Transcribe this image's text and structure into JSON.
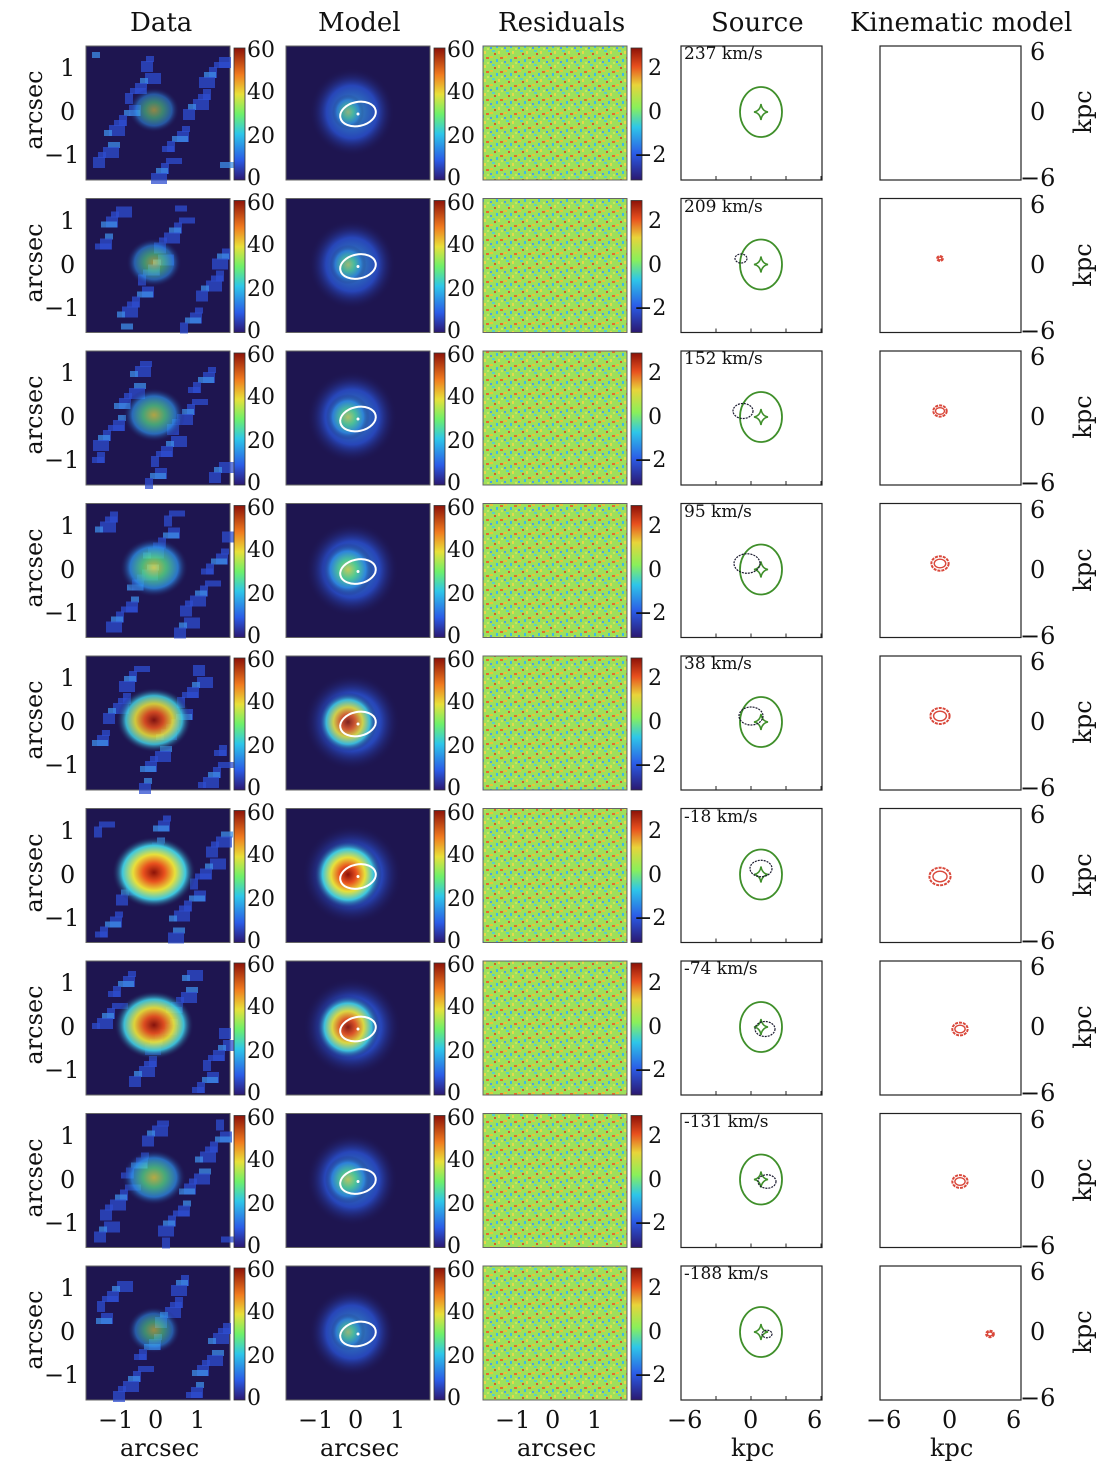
{
  "columns": {
    "data": "Data",
    "model": "Model",
    "residuals": "Residuals",
    "source": "Source",
    "kinematic": "Kinematic model"
  },
  "axis_labels": {
    "arcsec": "arcsec",
    "kpc": "kpc"
  },
  "ticks": {
    "arcsec_y": [
      "1",
      "0",
      "−1"
    ],
    "arcsec_x": [
      "−1",
      "0",
      "1"
    ],
    "kpc_x": [
      "−6",
      "0",
      "6"
    ],
    "kpc_y": [
      "6",
      "0",
      "−6"
    ],
    "cbar_flux": [
      "60",
      "40",
      "20",
      "0"
    ],
    "cbar_resid": [
      "2",
      "0",
      "−2"
    ]
  },
  "velocities": [
    "237 km/s",
    "209 km/s",
    "152 km/s",
    "95 km/s",
    "38 km/s",
    "-18 km/s",
    "-74 km/s",
    "-131 km/s",
    "-188 km/s"
  ],
  "colors": {
    "background_map": "#1e1550",
    "caustic": "#3f8f2a",
    "source_contour": "#1a1a2e",
    "kinematic_contour": "#d9483b",
    "critical_curve": "#ffffff"
  }
}
